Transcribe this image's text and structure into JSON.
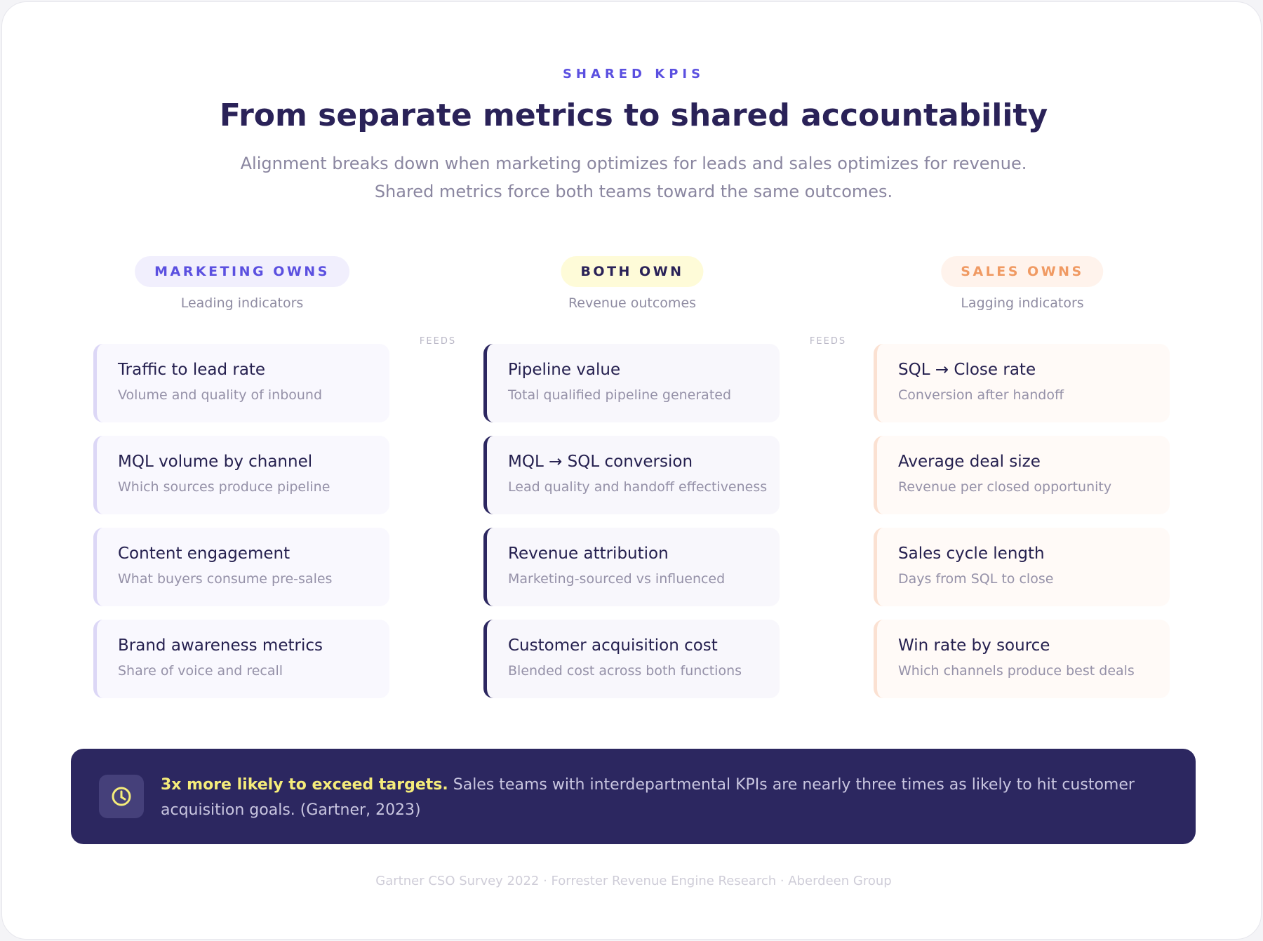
{
  "header": {
    "eyebrow": "SHARED KPIS",
    "title": "From separate metrics to shared accountability",
    "subtitle": [
      "Alignment breaks down when marketing optimizes for leads and sales optimizes for revenue.",
      "Shared metrics force both teams toward the same outcomes."
    ]
  },
  "columns": [
    {
      "badge": "MARKETING OWNS",
      "caption": "Leading indicators",
      "cards": [
        {
          "title": "Traffic to lead rate",
          "desc": "Volume and quality of inbound"
        },
        {
          "title": "MQL volume by channel",
          "desc": "Which sources produce pipeline"
        },
        {
          "title": "Content engagement",
          "desc": "What buyers consume pre-sales"
        },
        {
          "title": "Brand awareness metrics",
          "desc": "Share of voice and recall"
        }
      ]
    },
    {
      "badge": "BOTH OWN",
      "caption": "Revenue outcomes",
      "cards": [
        {
          "title": "Pipeline value",
          "desc": "Total qualified pipeline generated"
        },
        {
          "title": "MQL → SQL conversion",
          "desc": "Lead quality and handoff effectiveness"
        },
        {
          "title": "Revenue attribution",
          "desc": "Marketing-sourced vs influenced"
        },
        {
          "title": "Customer acquisition cost",
          "desc": "Blended cost across both functions"
        }
      ]
    },
    {
      "badge": "SALES OWNS",
      "caption": "Lagging indicators",
      "cards": [
        {
          "title": "SQL → Close rate",
          "desc": "Conversion after handoff"
        },
        {
          "title": "Average deal size",
          "desc": "Revenue per closed opportunity"
        },
        {
          "title": "Sales cycle length",
          "desc": "Days from SQL to close"
        },
        {
          "title": "Win rate by source",
          "desc": "Which channels produce best deals"
        }
      ]
    }
  ],
  "connectors": [
    "FEEDS",
    "FEEDS"
  ],
  "callout": {
    "highlight": "3x more likely to exceed targets.",
    "text": "Sales teams with interdepartmental KPIs are nearly three times as likely to hit customer acquisition goals. (Gartner, 2023)"
  },
  "footer": "Gartner CSO Survey 2022 · Forrester Revenue Engine Research · Aberdeen Group"
}
